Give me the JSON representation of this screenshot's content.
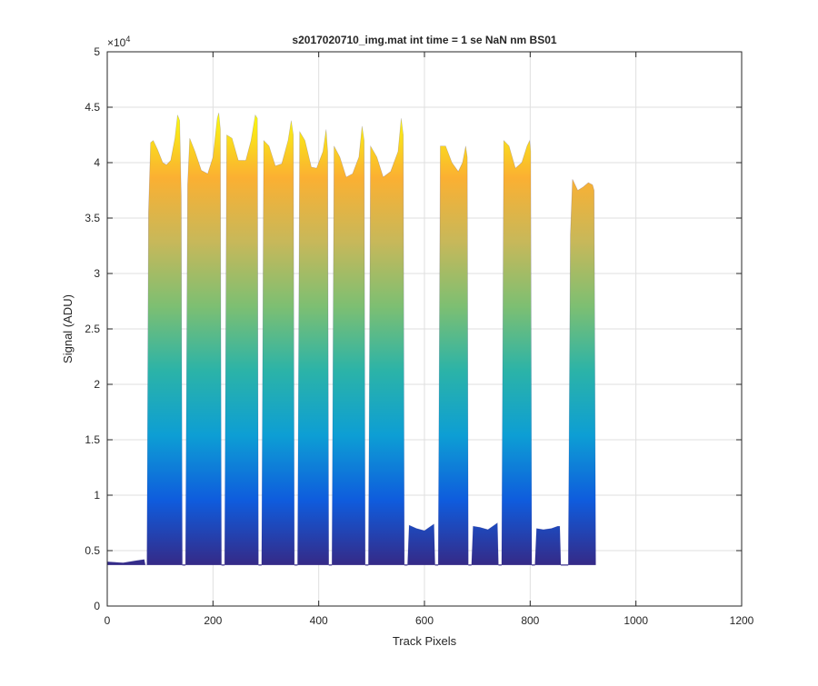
{
  "chart_data": {
    "type": "area",
    "title": "s2017020710_img.mat int time = 1 se  NaN nm BS01",
    "xlabel": "Track Pixels",
    "ylabel": "Signal (ADU)",
    "y_exponent_label": "×10",
    "y_exponent_power": "4",
    "xlim": [
      0,
      1200
    ],
    "ylim": [
      0,
      5
    ],
    "x_ticks": [
      0,
      200,
      400,
      600,
      800,
      1000,
      1200
    ],
    "x_tick_labels": [
      "0",
      "200",
      "400",
      "600",
      "800",
      "1000",
      "1200"
    ],
    "y_ticks": [
      0,
      0.5,
      1,
      1.5,
      2,
      2.5,
      3,
      3.5,
      4,
      4.5,
      5
    ],
    "y_tick_labels": [
      "0",
      "0.5",
      "1",
      "1.5",
      "2",
      "2.5",
      "3",
      "3.5",
      "4",
      "4.5",
      "5"
    ],
    "grid": true,
    "baseline": 0.37,
    "fill_gradient": [
      "#352a87",
      "#0f5cdd",
      "#0d9ed4",
      "#2bb3a8",
      "#7dbf72",
      "#c7b85a",
      "#fbb032",
      "#f9fb0e"
    ],
    "profile": [
      [
        0,
        0.4
      ],
      [
        30,
        0.39
      ],
      [
        55,
        0.41
      ],
      [
        70,
        0.42
      ],
      [
        72,
        0.37
      ],
      [
        75,
        0.37
      ],
      [
        78,
        3.55
      ],
      [
        82,
        4.18
      ],
      [
        87,
        4.2
      ],
      [
        95,
        4.12
      ],
      [
        105,
        4.0
      ],
      [
        112,
        3.98
      ],
      [
        120,
        4.02
      ],
      [
        128,
        4.22
      ],
      [
        133,
        4.43
      ],
      [
        137,
        4.38
      ],
      [
        140,
        3.7
      ],
      [
        142,
        0.37
      ],
      [
        148,
        0.37
      ],
      [
        152,
        3.8
      ],
      [
        156,
        4.22
      ],
      [
        166,
        4.1
      ],
      [
        178,
        3.93
      ],
      [
        190,
        3.9
      ],
      [
        200,
        4.05
      ],
      [
        208,
        4.4
      ],
      [
        211,
        4.45
      ],
      [
        214,
        4.3
      ],
      [
        216,
        0.37
      ],
      [
        222,
        0.37
      ],
      [
        226,
        4.25
      ],
      [
        236,
        4.22
      ],
      [
        248,
        4.02
      ],
      [
        262,
        4.02
      ],
      [
        272,
        4.2
      ],
      [
        280,
        4.43
      ],
      [
        284,
        4.4
      ],
      [
        286,
        0.37
      ],
      [
        292,
        0.37
      ],
      [
        296,
        4.2
      ],
      [
        306,
        4.15
      ],
      [
        318,
        3.97
      ],
      [
        330,
        3.99
      ],
      [
        342,
        4.2
      ],
      [
        348,
        4.38
      ],
      [
        352,
        4.25
      ],
      [
        354,
        0.37
      ],
      [
        360,
        0.37
      ],
      [
        364,
        4.28
      ],
      [
        374,
        4.2
      ],
      [
        386,
        3.96
      ],
      [
        396,
        3.95
      ],
      [
        408,
        4.1
      ],
      [
        414,
        4.3
      ],
      [
        417,
        4.1
      ],
      [
        419,
        0.37
      ],
      [
        425,
        0.37
      ],
      [
        429,
        4.15
      ],
      [
        440,
        4.05
      ],
      [
        452,
        3.87
      ],
      [
        464,
        3.9
      ],
      [
        476,
        4.05
      ],
      [
        482,
        4.33
      ],
      [
        486,
        4.2
      ],
      [
        488,
        0.37
      ],
      [
        494,
        0.37
      ],
      [
        498,
        4.15
      ],
      [
        510,
        4.05
      ],
      [
        522,
        3.87
      ],
      [
        536,
        3.92
      ],
      [
        550,
        4.1
      ],
      [
        556,
        4.4
      ],
      [
        560,
        4.25
      ],
      [
        562,
        0.37
      ],
      [
        568,
        0.37
      ],
      [
        571,
        0.73
      ],
      [
        585,
        0.7
      ],
      [
        600,
        0.68
      ],
      [
        612,
        0.72
      ],
      [
        618,
        0.74
      ],
      [
        620,
        0.37
      ],
      [
        626,
        0.37
      ],
      [
        630,
        4.15
      ],
      [
        640,
        4.15
      ],
      [
        652,
        4.0
      ],
      [
        664,
        3.92
      ],
      [
        672,
        4.0
      ],
      [
        678,
        4.15
      ],
      [
        681,
        4.05
      ],
      [
        683,
        0.37
      ],
      [
        689,
        0.37
      ],
      [
        692,
        0.72
      ],
      [
        705,
        0.71
      ],
      [
        720,
        0.69
      ],
      [
        732,
        0.73
      ],
      [
        738,
        0.75
      ],
      [
        740,
        0.37
      ],
      [
        746,
        0.37
      ],
      [
        750,
        4.2
      ],
      [
        760,
        4.15
      ],
      [
        772,
        3.95
      ],
      [
        784,
        4.0
      ],
      [
        794,
        4.15
      ],
      [
        799,
        4.2
      ],
      [
        801,
        4.1
      ],
      [
        803,
        0.37
      ],
      [
        809,
        0.37
      ],
      [
        812,
        0.7
      ],
      [
        825,
        0.69
      ],
      [
        840,
        0.7
      ],
      [
        852,
        0.72
      ],
      [
        856,
        0.72
      ],
      [
        858,
        0.37
      ],
      [
        872,
        0.37
      ],
      [
        876,
        3.35
      ],
      [
        880,
        3.85
      ],
      [
        890,
        3.75
      ],
      [
        900,
        3.78
      ],
      [
        910,
        3.82
      ],
      [
        918,
        3.8
      ],
      [
        921,
        3.75
      ],
      [
        924,
        0.37
      ]
    ],
    "floor_segments": [
      [
        142,
        148
      ],
      [
        216,
        222
      ],
      [
        286,
        292
      ],
      [
        354,
        360
      ],
      [
        419,
        425
      ],
      [
        488,
        494
      ],
      [
        562,
        568
      ],
      [
        620,
        626
      ],
      [
        683,
        689
      ],
      [
        740,
        746
      ],
      [
        803,
        809
      ],
      [
        858,
        872
      ]
    ]
  }
}
